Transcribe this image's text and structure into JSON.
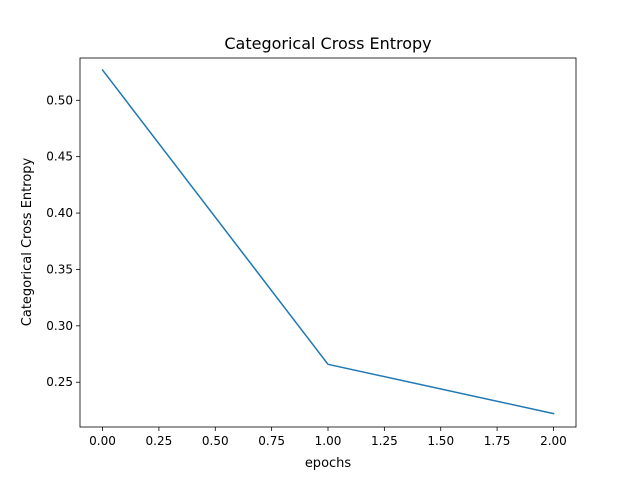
{
  "chart_data": {
    "type": "line",
    "title": "Categorical Cross Entropy",
    "xlabel": "epochs",
    "ylabel": "Categorical Cross Entropy",
    "xlim": [
      -0.1,
      2.1
    ],
    "ylim": [
      0.2103,
      0.5375
    ],
    "xticks": [
      0.0,
      0.25,
      0.5,
      0.75,
      1.0,
      1.25,
      1.5,
      1.75,
      2.0
    ],
    "xtick_labels": [
      "0.00",
      "0.25",
      "0.50",
      "0.75",
      "1.00",
      "1.25",
      "1.50",
      "1.75",
      "2.00"
    ],
    "yticks": [
      0.25,
      0.3,
      0.35,
      0.4,
      0.45,
      0.5
    ],
    "ytick_labels": [
      "0.25",
      "0.30",
      "0.35",
      "0.40",
      "0.45",
      "0.50"
    ],
    "grid": false,
    "series": [
      {
        "color": "#1f77b4",
        "x": [
          0,
          1,
          2
        ],
        "y": [
          0.5268,
          0.2659,
          0.2222
        ]
      }
    ]
  }
}
